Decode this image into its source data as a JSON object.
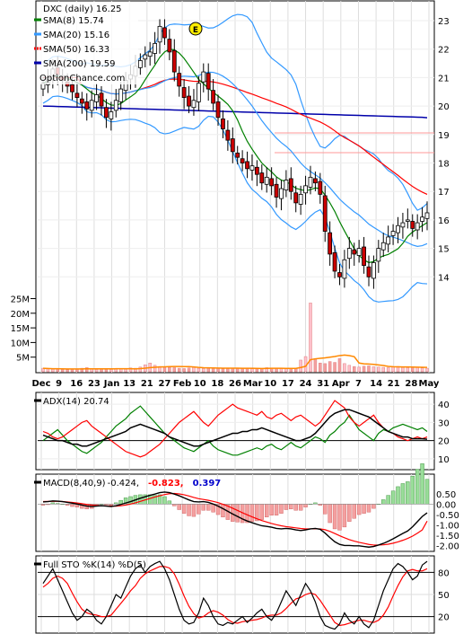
{
  "price_panel": {
    "legend": [
      {
        "text": "DXC (daily) 16.25",
        "color": "#000000",
        "marker": "none"
      },
      {
        "text": "SMA(8) 15.74",
        "color": "#008000",
        "marker": "line"
      },
      {
        "text": "SMA(20) 15.16",
        "color": "#3399ff",
        "marker": "line"
      },
      {
        "text": "SMA(50) 16.33",
        "color": "#ff0000",
        "marker": "dashed"
      },
      {
        "text": "SMA(200) 19.59",
        "color": "#0000aa",
        "marker": "line"
      }
    ],
    "watermark": "OptionChance.com",
    "earnings_marker": "E"
  },
  "adx_panel": {
    "label": "ADX(14) 20.74",
    "ticks": [
      "40",
      "30",
      "20",
      "10"
    ]
  },
  "macd_panel": {
    "label_prefix": "MACD(8,40,9)",
    "macd_value": "-0.424,",
    "signal_value": "-0.823,",
    "hist_value": "0.397",
    "ticks": [
      "0.50",
      "0.00",
      "-0.50",
      "-1.00",
      "-1.50",
      "-2.00"
    ]
  },
  "sto_panel": {
    "label": "Full STO %K(14) %D(5)",
    "ticks": [
      "80",
      "50",
      "20"
    ]
  },
  "chart_data": [
    {
      "type": "candlestick",
      "series_colors": {
        "up": "#ffffff",
        "down": "#cc0000",
        "sma8": "#008000",
        "sma20": "#3399ff",
        "sma50": "#ff0000",
        "sma200": "#0000aa",
        "bollinger": "#3399ff"
      },
      "ylim": [
        13,
        23.6
      ],
      "y_ticks": [
        14,
        15,
        16,
        17,
        18,
        19,
        20,
        21,
        22,
        23
      ],
      "x_ticks": [
        "Dec",
        "9",
        "16",
        "23",
        "Jan",
        "13",
        "21",
        "27",
        "Feb",
        "10",
        "18",
        "26",
        "Mar",
        "10",
        "17",
        "24",
        "31",
        "Apr",
        "7",
        "14",
        "21",
        "28",
        "May"
      ],
      "close": [
        20.8,
        21.0,
        21.3,
        21.1,
        20.9,
        20.7,
        20.5,
        20.3,
        20.1,
        19.9,
        20.2,
        20.4,
        20.0,
        19.6,
        19.8,
        20.2,
        20.6,
        20.9,
        21.1,
        21.4,
        21.6,
        21.8,
        21.9,
        22.2,
        22.8,
        22.4,
        21.9,
        21.2,
        20.7,
        20.3,
        20.0,
        20.2,
        20.8,
        21.2,
        20.6,
        20.1,
        19.6,
        19.2,
        18.8,
        18.4,
        18.2,
        18.0,
        17.8,
        17.9,
        17.6,
        17.3,
        17.5,
        17.2,
        16.8,
        17.1,
        17.4,
        17.0,
        16.6,
        16.9,
        17.2,
        17.5,
        17.3,
        16.9,
        15.6,
        14.8,
        14.2,
        14.0,
        14.6,
        15.0,
        14.8,
        15.0,
        14.4,
        14.0,
        14.5,
        15.0,
        15.2,
        15.4,
        15.6,
        15.8,
        15.9,
        16.0,
        15.7,
        15.9,
        16.1,
        16.25
      ],
      "volume_millions": [
        1.2,
        1.0,
        0.9,
        1.1,
        0.8,
        0.7,
        1.0,
        0.9,
        1.2,
        1.4,
        1.1,
        0.8,
        1.0,
        0.9,
        0.8,
        1.1,
        1.0,
        0.9,
        1.3,
        1.2,
        1.6,
        2.4,
        3.0,
        2.2,
        1.8,
        1.6,
        1.5,
        1.4,
        1.2,
        1.1,
        1.3,
        1.5,
        1.2,
        1.1,
        1.4,
        1.3,
        1.2,
        1.0,
        1.1,
        1.2,
        1.3,
        1.1,
        1.2,
        1.0,
        1.1,
        1.0,
        1.4,
        1.3,
        1.2,
        1.1,
        1.0,
        1.3,
        1.2,
        4.0,
        5.2,
        23.5,
        4.5,
        3.0,
        2.8,
        3.5,
        3.2,
        4.5,
        2.8,
        2.2,
        1.8,
        1.6,
        1.9,
        2.0,
        1.7,
        1.6,
        1.5,
        1.4,
        1.6,
        1.8,
        1.5,
        1.4,
        1.7,
        1.6,
        1.3,
        1.2
      ],
      "volume_ticks": [
        "25M",
        "20M",
        "15M",
        "10M",
        "5M"
      ],
      "volume_ylim": [
        0,
        27
      ]
    },
    {
      "type": "line",
      "name": "ADX(14)",
      "ylim": [
        5,
        45
      ],
      "adx": [
        23,
        22,
        21,
        20,
        20,
        19,
        18,
        18,
        17,
        17,
        18,
        19,
        20,
        21,
        22,
        23,
        24,
        25,
        27,
        28,
        29,
        28,
        27,
        26,
        25,
        24,
        22,
        21,
        20,
        19,
        18,
        17,
        17,
        18,
        19,
        20,
        21,
        22,
        23,
        24,
        24,
        25,
        25,
        26,
        26,
        27,
        26,
        25,
        24,
        23,
        22,
        21,
        20,
        20,
        21,
        22,
        24,
        27,
        30,
        33,
        35,
        36,
        37,
        37,
        36,
        35,
        34,
        33,
        31,
        29,
        27,
        25,
        24,
        23,
        22,
        22,
        21,
        21,
        21,
        20.74
      ],
      "plus_di": [
        20,
        22,
        24,
        26,
        23,
        20,
        18,
        16,
        14,
        13,
        15,
        17,
        19,
        22,
        25,
        28,
        30,
        32,
        35,
        37,
        39,
        36,
        33,
        30,
        27,
        24,
        22,
        20,
        18,
        16,
        15,
        14,
        16,
        18,
        20,
        17,
        15,
        14,
        13,
        12,
        12,
        13,
        14,
        15,
        16,
        15,
        17,
        18,
        16,
        15,
        17,
        19,
        17,
        16,
        18,
        20,
        22,
        21,
        19,
        23,
        25,
        28,
        30,
        34,
        30,
        26,
        24,
        22,
        20,
        24,
        26,
        25,
        27,
        28,
        29,
        28,
        27,
        26,
        27,
        25
      ],
      "minus_di": [
        25,
        24,
        22,
        21,
        22,
        24,
        26,
        28,
        30,
        31,
        28,
        26,
        24,
        22,
        20,
        18,
        16,
        14,
        13,
        12,
        11,
        12,
        14,
        16,
        18,
        21,
        24,
        27,
        30,
        32,
        34,
        36,
        33,
        30,
        28,
        31,
        34,
        36,
        38,
        40,
        38,
        37,
        36,
        35,
        34,
        36,
        33,
        32,
        34,
        35,
        33,
        31,
        33,
        34,
        32,
        30,
        28,
        30,
        34,
        38,
        42,
        40,
        38,
        33,
        30,
        28,
        30,
        32,
        34,
        30,
        27,
        25,
        24,
        22,
        21,
        20,
        21,
        22,
        21,
        22
      ]
    },
    {
      "type": "line",
      "name": "MACD(8,40,9)",
      "ylim": [
        -2.2,
        0.75
      ],
      "macd": [
        0.1,
        0.12,
        0.15,
        0.14,
        0.12,
        0.08,
        0.04,
        0.0,
        -0.05,
        -0.1,
        -0.12,
        -0.1,
        -0.08,
        -0.1,
        -0.12,
        -0.08,
        -0.02,
        0.05,
        0.12,
        0.2,
        0.28,
        0.35,
        0.42,
        0.48,
        0.55,
        0.58,
        0.55,
        0.48,
        0.4,
        0.3,
        0.2,
        0.12,
        0.1,
        0.12,
        0.08,
        0.0,
        -0.1,
        -0.22,
        -0.35,
        -0.48,
        -0.6,
        -0.72,
        -0.82,
        -0.9,
        -0.98,
        -1.05,
        -1.08,
        -1.12,
        -1.18,
        -1.2,
        -1.18,
        -1.2,
        -1.25,
        -1.28,
        -1.25,
        -1.2,
        -1.18,
        -1.22,
        -1.4,
        -1.62,
        -1.82,
        -1.95,
        -2.0,
        -2.0,
        -2.02,
        -2.02,
        -2.05,
        -2.08,
        -2.05,
        -1.98,
        -1.9,
        -1.8,
        -1.68,
        -1.55,
        -1.42,
        -1.3,
        -1.1,
        -0.85,
        -0.6,
        -0.424
      ],
      "signal": [
        0.12,
        0.13,
        0.13,
        0.13,
        0.12,
        0.1,
        0.08,
        0.05,
        0.02,
        -0.02,
        -0.05,
        -0.07,
        -0.08,
        -0.09,
        -0.1,
        -0.1,
        -0.08,
        -0.05,
        0.0,
        0.06,
        0.13,
        0.2,
        0.27,
        0.34,
        0.4,
        0.46,
        0.5,
        0.51,
        0.49,
        0.45,
        0.39,
        0.32,
        0.26,
        0.22,
        0.18,
        0.13,
        0.07,
        -0.01,
        -0.1,
        -0.2,
        -0.31,
        -0.42,
        -0.52,
        -0.62,
        -0.71,
        -0.8,
        -0.87,
        -0.94,
        -1.0,
        -1.05,
        -1.09,
        -1.12,
        -1.15,
        -1.18,
        -1.2,
        -1.2,
        -1.2,
        -1.2,
        -1.24,
        -1.32,
        -1.42,
        -1.53,
        -1.63,
        -1.72,
        -1.79,
        -1.85,
        -1.9,
        -1.95,
        -1.98,
        -1.98,
        -1.97,
        -1.94,
        -1.89,
        -1.83,
        -1.75,
        -1.66,
        -1.55,
        -1.41,
        -1.25,
        -0.823
      ]
    },
    {
      "type": "line",
      "name": "Full STO %K(14) %D(5)",
      "ylim": [
        0,
        100
      ],
      "k": [
        65,
        75,
        85,
        70,
        55,
        40,
        25,
        15,
        20,
        30,
        25,
        15,
        10,
        20,
        35,
        50,
        45,
        60,
        75,
        85,
        90,
        80,
        88,
        92,
        95,
        85,
        70,
        50,
        30,
        15,
        10,
        12,
        25,
        45,
        35,
        20,
        10,
        8,
        12,
        10,
        15,
        20,
        12,
        18,
        25,
        30,
        20,
        15,
        25,
        40,
        55,
        45,
        35,
        50,
        65,
        55,
        40,
        20,
        8,
        5,
        3,
        10,
        25,
        15,
        10,
        20,
        10,
        5,
        15,
        35,
        55,
        70,
        85,
        92,
        88,
        80,
        70,
        75,
        90,
        95
      ],
      "d": [
        60,
        65,
        72,
        75,
        72,
        65,
        52,
        40,
        30,
        25,
        23,
        22,
        20,
        20,
        22,
        30,
        38,
        46,
        55,
        62,
        72,
        78,
        82,
        85,
        88,
        88,
        86,
        78,
        64,
        48,
        34,
        24,
        18,
        20,
        25,
        28,
        26,
        22,
        16,
        12,
        11,
        13,
        14,
        15,
        16,
        18,
        21,
        22,
        22,
        25,
        31,
        38,
        44,
        46,
        50,
        52,
        50,
        42,
        32,
        22,
        12,
        8,
        9,
        11,
        13,
        15,
        15,
        13,
        12,
        15,
        22,
        33,
        48,
        62,
        74,
        82,
        84,
        82,
        82,
        85
      ]
    }
  ]
}
